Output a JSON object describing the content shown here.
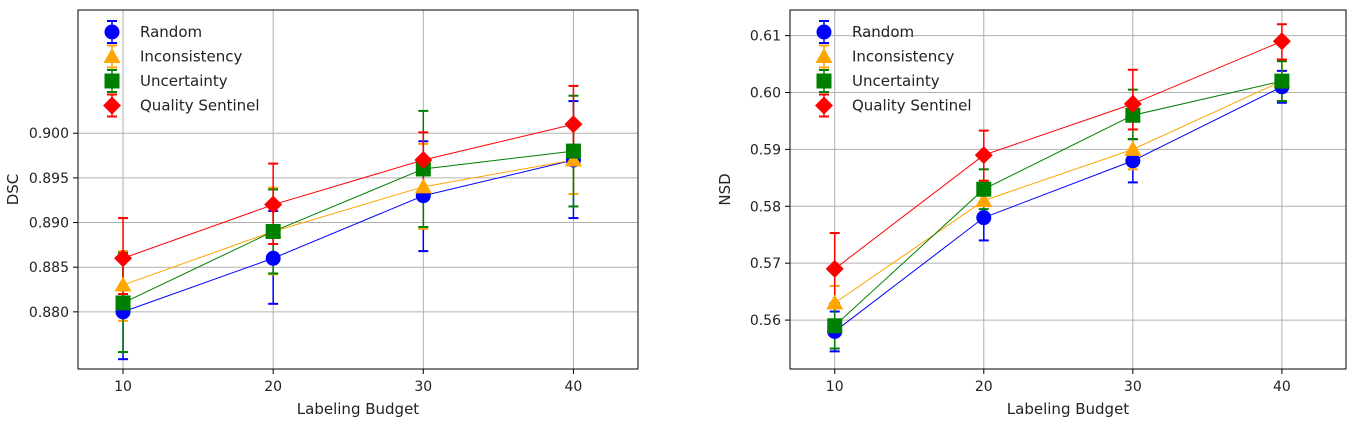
{
  "chart_data": [
    {
      "type": "line",
      "xlabel": "Labeling Budget",
      "ylabel": "DSC",
      "x": [
        10,
        20,
        30,
        40
      ],
      "xlim": [
        7,
        44.3
      ],
      "ylim": [
        0.8736,
        0.9138
      ],
      "yticks": [
        0.88,
        0.885,
        0.89,
        0.895,
        0.9
      ],
      "ytick_labels": [
        "0.880",
        "0.885",
        "0.890",
        "0.895",
        "0.900"
      ],
      "xticks": [
        10,
        20,
        30,
        40
      ],
      "xtick_labels": [
        "10",
        "20",
        "30",
        "40"
      ],
      "grid": true,
      "legend_position": "top-left",
      "series": [
        {
          "name": "Random",
          "color": "#0000ff",
          "marker": "circle",
          "values": [
            0.88,
            0.886,
            0.893,
            0.897
          ],
          "err_low": [
            0.8747,
            0.8809,
            0.8868,
            0.8905
          ],
          "err_high": [
            0.8867,
            0.8913,
            0.8991,
            0.9036
          ]
        },
        {
          "name": "Inconsistency",
          "color": "#ffa500",
          "marker": "triangle",
          "values": [
            0.883,
            0.889,
            0.894,
            0.897
          ],
          "err_low": [
            0.879,
            0.8842,
            0.8893,
            0.8932
          ],
          "err_high": [
            0.8868,
            0.8939,
            0.8988,
            0.9008
          ]
        },
        {
          "name": "Uncertainty",
          "color": "#008000",
          "marker": "square",
          "values": [
            0.881,
            0.889,
            0.896,
            0.898
          ],
          "err_low": [
            0.8755,
            0.8843,
            0.8895,
            0.8918
          ],
          "err_high": [
            0.8866,
            0.8937,
            0.9025,
            0.9042
          ]
        },
        {
          "name": "Quality Sentinel",
          "color": "#ff0000",
          "marker": "diamond",
          "values": [
            0.886,
            0.892,
            0.897,
            0.901
          ],
          "err_low": [
            0.882,
            0.8876,
            0.893,
            0.897
          ],
          "err_high": [
            0.8905,
            0.8966,
            0.9001,
            0.9053
          ]
        }
      ]
    },
    {
      "type": "line",
      "xlabel": "Labeling Budget",
      "ylabel": "NSD",
      "x": [
        10,
        20,
        30,
        40
      ],
      "xlim": [
        7,
        44.3
      ],
      "ylim": [
        0.5514,
        0.6145
      ],
      "yticks": [
        0.56,
        0.57,
        0.58,
        0.59,
        0.6,
        0.61
      ],
      "ytick_labels": [
        "0.56",
        "0.57",
        "0.58",
        "0.59",
        "0.60",
        "0.61"
      ],
      "xticks": [
        10,
        20,
        30,
        40
      ],
      "xtick_labels": [
        "10",
        "20",
        "30",
        "40"
      ],
      "grid": true,
      "legend_position": "top-left",
      "series": [
        {
          "name": "Random",
          "color": "#0000ff",
          "marker": "circle",
          "values": [
            0.558,
            0.578,
            0.588,
            0.601
          ],
          "err_low": [
            0.5545,
            0.574,
            0.5842,
            0.5982
          ],
          "err_high": [
            0.5615,
            0.582,
            0.5918,
            0.6038
          ]
        },
        {
          "name": "Inconsistency",
          "color": "#ffa500",
          "marker": "triangle",
          "values": [
            0.563,
            0.581,
            0.59,
            0.602
          ],
          "err_low": [
            0.56,
            0.5778,
            0.5865,
            0.5985
          ],
          "err_high": [
            0.566,
            0.5842,
            0.5935,
            0.6055
          ]
        },
        {
          "name": "Uncertainty",
          "color": "#008000",
          "marker": "square",
          "values": [
            0.559,
            0.583,
            0.596,
            0.602
          ],
          "err_low": [
            0.555,
            0.5795,
            0.5918,
            0.5985
          ],
          "err_high": [
            0.563,
            0.5865,
            0.6005,
            0.6055
          ]
        },
        {
          "name": "Quality Sentinel",
          "color": "#ff0000",
          "marker": "diamond",
          "values": [
            0.569,
            0.589,
            0.598,
            0.609
          ],
          "err_low": [
            0.563,
            0.5845,
            0.5935,
            0.6058
          ],
          "err_high": [
            0.5753,
            0.5933,
            0.604,
            0.612
          ]
        }
      ]
    }
  ]
}
